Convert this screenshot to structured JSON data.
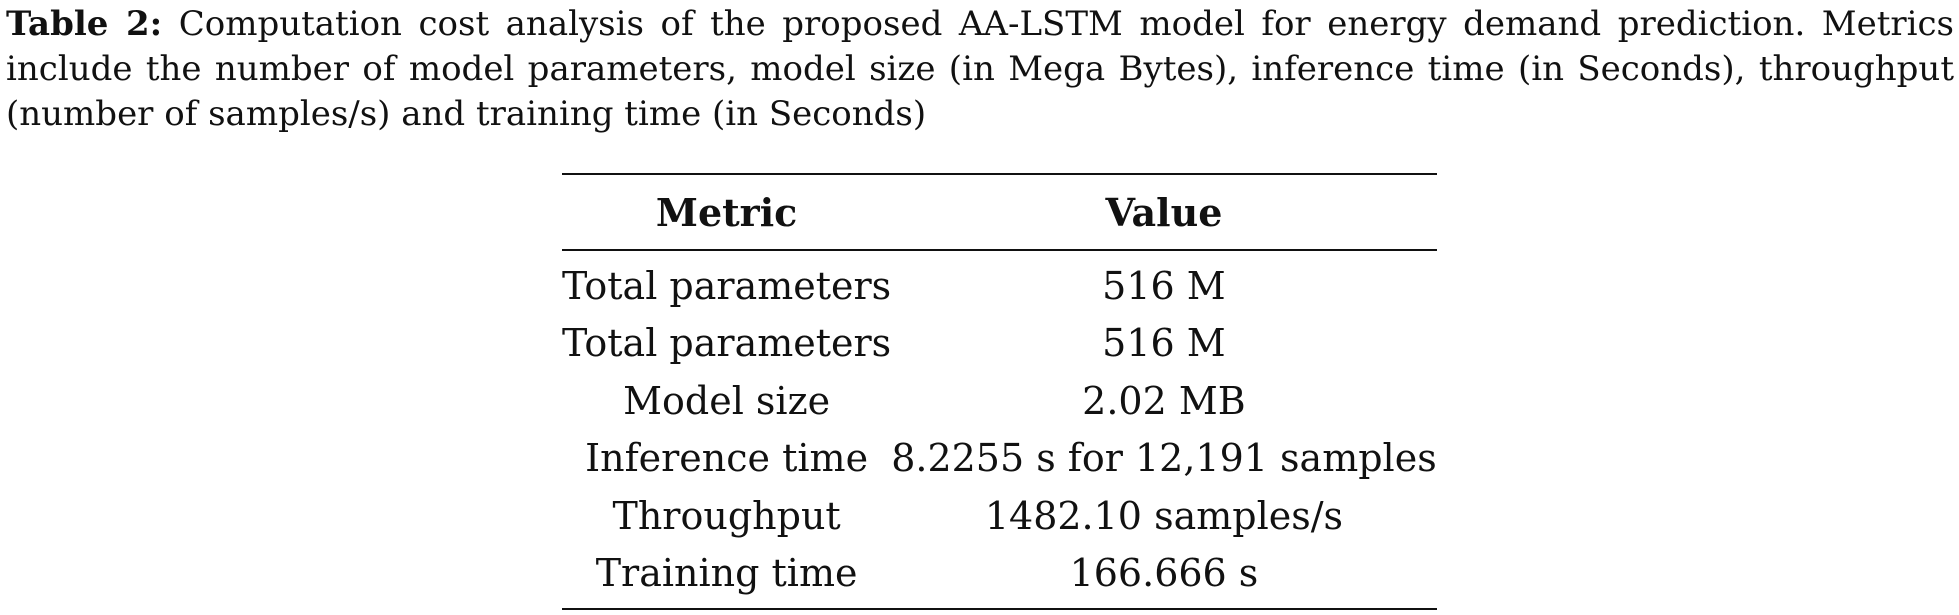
{
  "caption": {
    "label": "Table 2:",
    "text": "Computation cost analysis of the proposed AA-LSTM model for energy demand prediction. Metrics include the number of model parameters, model size (in Mega Bytes), inference time (in Seconds), throughput (number of samples/s) and training time (in Seconds)"
  },
  "table": {
    "headers": [
      "Metric",
      "Value"
    ],
    "rows": [
      [
        "Total parameters",
        "516 M"
      ],
      [
        "Total parameters",
        "516 M"
      ],
      [
        "Model size",
        "2.02 MB"
      ],
      [
        "Inference time",
        "8.2255 s for 12,191 samples"
      ],
      [
        "Throughput",
        "1482.10 samples/s"
      ],
      [
        "Training time",
        "166.666 s"
      ]
    ]
  }
}
